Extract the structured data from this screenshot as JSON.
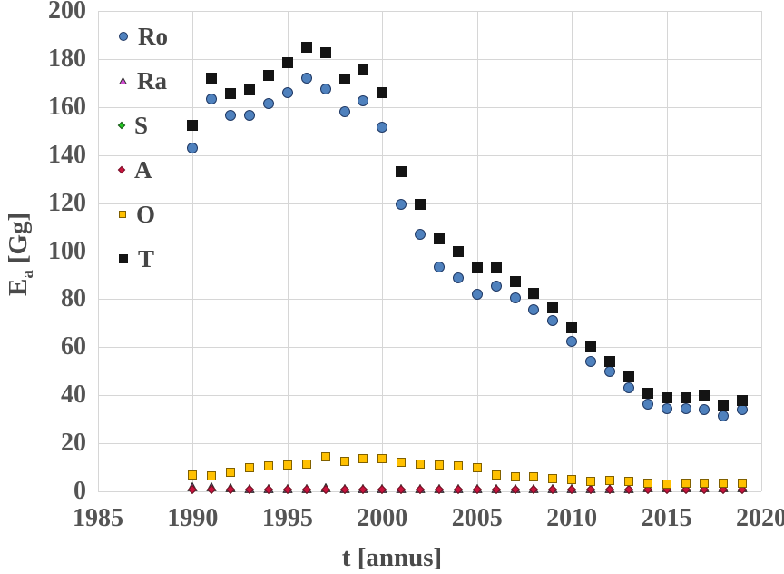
{
  "chart_data": {
    "type": "scatter",
    "title": "",
    "xlabel": "t [annus]",
    "ylabel": "Ea [Gg]",
    "ylabel_main": "E",
    "ylabel_sub": "a",
    "ylabel_unit": "[Gg]",
    "xlim": [
      1985,
      2020
    ],
    "ylim": [
      0,
      200
    ],
    "xticks": [
      1985,
      1990,
      1995,
      2000,
      2005,
      2010,
      2015,
      2020
    ],
    "yticks": [
      0,
      20,
      40,
      60,
      80,
      100,
      120,
      140,
      160,
      180,
      200
    ],
    "grid": true,
    "legend_position": "inside-upper-left",
    "colors": {
      "grid": "#d6d6d6",
      "tick_text": "#545454",
      "ro_fill": "#4f81bd",
      "ro_stroke": "#1f3864",
      "ra_fill": "#d24fd2",
      "ra_stroke": "#2b2b2b",
      "s_fill": "#22c522",
      "s_stroke": "#1c4a1c",
      "a_fill": "#c9143c",
      "a_stroke": "#70112a",
      "o_fill": "#ffc000",
      "o_stroke": "#806000",
      "t_fill": "#141414"
    },
    "x": [
      1990,
      1991,
      1992,
      1993,
      1994,
      1995,
      1996,
      1997,
      1998,
      1999,
      2000,
      2001,
      2002,
      2003,
      2004,
      2005,
      2006,
      2007,
      2008,
      2009,
      2010,
      2011,
      2012,
      2013,
      2014,
      2015,
      2016,
      2017,
      2018,
      2019
    ],
    "series": [
      {
        "name": "Ro",
        "marker": "circle",
        "fill": "#4f81bd",
        "stroke": "#1f3864",
        "msize": 12,
        "values": [
          143,
          163.5,
          156.5,
          156.5,
          161.5,
          166,
          172,
          167.5,
          158,
          162.5,
          151.5,
          119.5,
          107,
          93.5,
          89,
          82,
          85.5,
          80.5,
          75.5,
          71,
          62.5,
          54,
          50,
          43,
          36.5,
          34.5,
          34.5,
          34,
          31.5,
          34
        ]
      },
      {
        "name": "Ra",
        "marker": "triangle",
        "fill": "#d24fd2",
        "stroke": "#2b2b2b",
        "msize": 11,
        "values": [
          2,
          1.8,
          1.4,
          1.3,
          1.3,
          1.3,
          1.3,
          1.4,
          1.3,
          1.3,
          1.3,
          1.1,
          1.1,
          1.1,
          1.1,
          1.1,
          1.1,
          1.1,
          1.1,
          1.1,
          1.1,
          1.2,
          1.2,
          1.2,
          1.4,
          1.4,
          1.4,
          1.4,
          1.4,
          1.4
        ]
      },
      {
        "name": "S",
        "marker": "diamond",
        "fill": "#22c522",
        "stroke": "#1c4a1c",
        "msize": 9,
        "values": [
          0.6,
          0.6,
          0.6,
          0.6,
          0.6,
          0.6,
          0.6,
          0.6,
          0.6,
          0.6,
          0.6,
          0.6,
          0.6,
          0.6,
          0.6,
          0.6,
          0.6,
          0.6,
          0.6,
          0.6,
          0.6,
          0.6,
          0.6,
          0.6,
          0.6,
          0.6,
          0.6,
          0.6,
          0.6,
          0.6
        ]
      },
      {
        "name": "A",
        "marker": "diamond",
        "fill": "#c9143c",
        "stroke": "#70112a",
        "msize": 9,
        "values": [
          0.8,
          0.8,
          0.8,
          0.8,
          0.8,
          0.8,
          0.8,
          0.8,
          0.8,
          0.8,
          0.8,
          0.8,
          0.8,
          0.8,
          0.8,
          0.8,
          0.8,
          0.8,
          0.8,
          0.8,
          0.8,
          0.8,
          0.8,
          0.8,
          0.8,
          0.8,
          0.8,
          0.8,
          0.8,
          0.8
        ]
      },
      {
        "name": "O",
        "marker": "square",
        "fill": "#ffc000",
        "stroke": "#806000",
        "msize": 10,
        "values": [
          7,
          6.5,
          8,
          10,
          10.5,
          11,
          11.5,
          14.5,
          12.5,
          13.5,
          13.5,
          12,
          11.5,
          11,
          10.5,
          10,
          7,
          6,
          6,
          5.5,
          5,
          4,
          4.5,
          4,
          3.5,
          3,
          3.5,
          3.5,
          3.5,
          3.5
        ]
      },
      {
        "name": "T",
        "marker": "square",
        "fill": "#141414",
        "stroke": "#141414",
        "msize": 12,
        "values": [
          152.5,
          172,
          165.5,
          167,
          173,
          178.5,
          185,
          182.5,
          171.5,
          175.5,
          166,
          133,
          119.5,
          105,
          100,
          93,
          93,
          87.5,
          82.5,
          76.5,
          68,
          60,
          54,
          47.5,
          41,
          39,
          39,
          40,
          36,
          38
        ]
      }
    ]
  }
}
